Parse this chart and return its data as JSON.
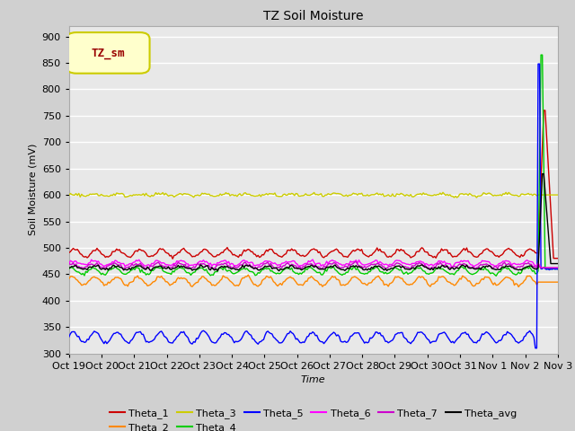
{
  "title": "TZ Soil Moisture",
  "xlabel": "Time",
  "ylabel": "Soil Moisture (mV)",
  "ylim": [
    300,
    920
  ],
  "yticks": [
    300,
    350,
    400,
    450,
    500,
    550,
    600,
    650,
    700,
    750,
    800,
    850,
    900
  ],
  "fig_bg_color": "#d0d0d0",
  "plot_bg_color": "#e8e8e8",
  "series": {
    "Theta_1": {
      "color": "#cc0000",
      "base": 490,
      "amp": 7,
      "freq": 1.5,
      "phase": 0.0
    },
    "Theta_2": {
      "color": "#ff8800",
      "base": 437,
      "amp": 8,
      "freq": 1.5,
      "phase": 0.5
    },
    "Theta_3": {
      "color": "#cccc00",
      "base": 600,
      "amp": 2,
      "freq": 1.5,
      "phase": 0.2
    },
    "Theta_4": {
      "color": "#00cc00",
      "base": 456,
      "amp": 6,
      "freq": 1.5,
      "phase": 1.0
    },
    "Theta_5": {
      "color": "#0000ff",
      "base": 330,
      "amp": 10,
      "freq": 1.5,
      "phase": 0.3
    },
    "Theta_6": {
      "color": "#ff00ff",
      "base": 471,
      "amp": 4,
      "freq": 1.5,
      "phase": 0.7
    },
    "Theta_7": {
      "color": "#cc00cc",
      "base": 466,
      "amp": 4,
      "freq": 1.5,
      "phase": 0.9
    },
    "Theta_avg": {
      "color": "#000000",
      "base": 462,
      "amp": 3,
      "freq": 1.5,
      "phase": 0.4
    }
  },
  "n_points": 350,
  "spike_index": 335,
  "x_tick_labels": [
    "Oct 19",
    "Oct 20",
    "Oct 21",
    "Oct 22",
    "Oct 23",
    "Oct 24",
    "Oct 25",
    "Oct 26",
    "Oct 27",
    "Oct 28",
    "Oct 29",
    "Oct 30",
    "Oct 31",
    "Nov 1",
    "Nov 2",
    "Nov 3"
  ],
  "legend_label": "TZ_sm",
  "legend_bg": "#ffffcc",
  "legend_border": "#cccc00",
  "legend_text_color": "#990000"
}
